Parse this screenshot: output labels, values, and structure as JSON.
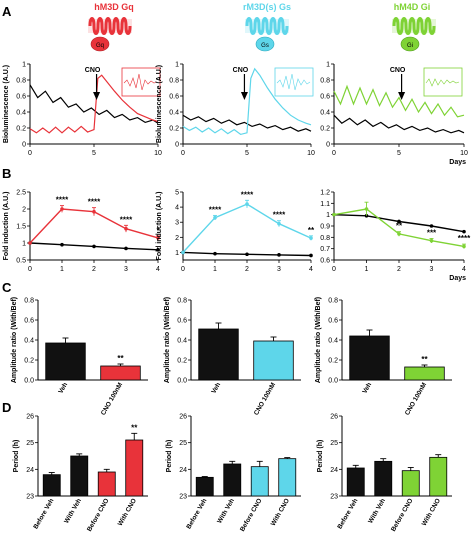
{
  "panel_letters": [
    "A",
    "B",
    "C",
    "D"
  ],
  "receptors": [
    {
      "title": "hM3D Gq",
      "protein": "Gq",
      "color": "#e8333a"
    },
    {
      "title": "rM3D(s) Gs",
      "protein": "Gs",
      "color": "#5ed6ea"
    },
    {
      "title": "hM4D Gi",
      "protein": "Gi",
      "color": "#7fd335"
    }
  ],
  "chart_data": [
    {
      "panel": "A",
      "type": "line",
      "id": "A1",
      "ylabel": "Bioluminescence (A.U.)",
      "xlabel": "",
      "annotation": "CNO",
      "annotation_x": 5.2,
      "xlim": [
        0,
        10
      ],
      "ylim": [
        0,
        1
      ],
      "xticks": [
        0,
        5,
        10
      ],
      "yticks": [
        0,
        0.2,
        0.4,
        0.6,
        0.8,
        1.0
      ],
      "series": [
        {
          "color": "#000000",
          "x": [
            0,
            0.6,
            1.2,
            1.8,
            2.4,
            3.0,
            3.6,
            4.2,
            4.8,
            5.4,
            6.0,
            6.6,
            7.2,
            7.8,
            8.4,
            9.0,
            9.6,
            10
          ],
          "y": [
            0.74,
            0.58,
            0.66,
            0.52,
            0.58,
            0.46,
            0.5,
            0.4,
            0.45,
            0.37,
            0.42,
            0.33,
            0.37,
            0.3,
            0.33,
            0.27,
            0.3,
            0.26
          ]
        },
        {
          "color": "#e8333a",
          "x": [
            0,
            0.5,
            1.0,
            1.5,
            2.0,
            2.5,
            3.0,
            3.5,
            4.0,
            4.5,
            5.0,
            5.3,
            5.6,
            6.0,
            6.6,
            7.2,
            7.8,
            8.4,
            9.0,
            9.6,
            10
          ],
          "y": [
            0.19,
            0.14,
            0.2,
            0.14,
            0.21,
            0.14,
            0.21,
            0.15,
            0.22,
            0.15,
            0.18,
            0.82,
            0.86,
            0.78,
            0.66,
            0.55,
            0.46,
            0.38,
            0.34,
            0.3,
            0.28
          ]
        }
      ]
    },
    {
      "panel": "A",
      "type": "line",
      "id": "A2",
      "ylabel": "Bioluminescence (A.U.)",
      "xlabel": "",
      "annotation": "CNO",
      "annotation_x": 4.8,
      "xlim": [
        0,
        10
      ],
      "ylim": [
        0,
        1
      ],
      "xticks": [
        0,
        5,
        10
      ],
      "yticks": [
        0,
        0.2,
        0.4,
        0.6,
        0.8,
        1.0
      ],
      "series": [
        {
          "color": "#000000",
          "x": [
            0,
            0.6,
            1.2,
            1.8,
            2.4,
            3.0,
            3.6,
            4.2,
            4.8,
            5.4,
            6.0,
            6.6,
            7.2,
            7.8,
            8.4,
            9.0,
            9.6,
            10
          ],
          "y": [
            0.36,
            0.3,
            0.34,
            0.28,
            0.32,
            0.26,
            0.3,
            0.24,
            0.27,
            0.22,
            0.25,
            0.2,
            0.23,
            0.18,
            0.21,
            0.16,
            0.19,
            0.16
          ]
        },
        {
          "color": "#5ed6ea",
          "x": [
            0,
            0.5,
            1.0,
            1.5,
            2.0,
            2.5,
            3.0,
            3.5,
            4.0,
            4.5,
            5.0,
            5.3,
            5.6,
            6.0,
            6.6,
            7.2,
            7.8,
            8.4,
            9.0,
            9.6,
            10
          ],
          "y": [
            0.22,
            0.17,
            0.21,
            0.15,
            0.2,
            0.14,
            0.19,
            0.13,
            0.18,
            0.12,
            0.14,
            0.82,
            0.94,
            0.86,
            0.7,
            0.56,
            0.45,
            0.36,
            0.3,
            0.26,
            0.24
          ]
        }
      ]
    },
    {
      "panel": "A",
      "type": "line",
      "id": "A3",
      "ylabel": "",
      "xlabel": "Days",
      "annotation": "CNO",
      "annotation_x": 5.2,
      "xlim": [
        0,
        10
      ],
      "ylim": [
        0,
        1
      ],
      "xticks": [
        0,
        5,
        10
      ],
      "yticks": [
        0,
        0.2,
        0.4,
        0.6,
        0.8,
        1.0
      ],
      "series": [
        {
          "color": "#000000",
          "x": [
            0,
            0.6,
            1.2,
            1.8,
            2.4,
            3.0,
            3.6,
            4.2,
            4.8,
            5.4,
            6.0,
            6.6,
            7.2,
            7.8,
            8.4,
            9.0,
            9.6,
            10
          ],
          "y": [
            0.36,
            0.26,
            0.32,
            0.24,
            0.3,
            0.22,
            0.27,
            0.2,
            0.24,
            0.18,
            0.22,
            0.17,
            0.2,
            0.15,
            0.18,
            0.14,
            0.17,
            0.14
          ]
        },
        {
          "color": "#7fd335",
          "x": [
            0,
            0.5,
            1.0,
            1.5,
            2.0,
            2.5,
            3.0,
            3.5,
            4.0,
            4.5,
            5.0,
            5.5,
            6.0,
            6.5,
            7.0,
            7.5,
            8.0,
            8.5,
            9.0,
            9.5,
            10
          ],
          "y": [
            0.66,
            0.5,
            0.72,
            0.5,
            0.7,
            0.5,
            0.68,
            0.48,
            0.64,
            0.46,
            0.58,
            0.42,
            0.56,
            0.4,
            0.52,
            0.38,
            0.5,
            0.36,
            0.46,
            0.34,
            0.36
          ]
        }
      ]
    },
    {
      "panel": "B",
      "type": "line",
      "id": "B1",
      "ylabel": "Fold induction (A.U.)",
      "xlabel": "",
      "xlim": [
        0,
        4
      ],
      "ylim": [
        0.5,
        2.5
      ],
      "xticks": [
        0,
        1,
        2,
        3,
        4
      ],
      "yticks": [
        0.5,
        1.0,
        1.5,
        2.0,
        2.5
      ],
      "series": [
        {
          "color": "#000000",
          "x": [
            0,
            1,
            2,
            3,
            4
          ],
          "y": [
            1.0,
            0.95,
            0.9,
            0.84,
            0.8
          ],
          "err": [
            0,
            0,
            0,
            0,
            0
          ]
        },
        {
          "color": "#e8333a",
          "x": [
            0,
            1,
            2,
            3,
            4
          ],
          "y": [
            1.0,
            2.0,
            1.92,
            1.42,
            1.15
          ],
          "err": [
            0,
            0.1,
            0.12,
            0.1,
            0.06
          ]
        }
      ],
      "significance": [
        {
          "x": 1,
          "label": "****"
        },
        {
          "x": 2,
          "label": "****"
        },
        {
          "x": 3,
          "label": "****"
        },
        {
          "x": 4,
          "label": "*"
        }
      ]
    },
    {
      "panel": "B",
      "type": "line",
      "id": "B2",
      "ylabel": "Fold induction (A.U.)",
      "xlabel": "",
      "xlim": [
        0,
        4
      ],
      "ylim": [
        0.5,
        5.0
      ],
      "xticks": [
        0,
        1,
        2,
        3,
        4
      ],
      "yticks": [
        1,
        2,
        3,
        4,
        5
      ],
      "series": [
        {
          "color": "#000000",
          "x": [
            0,
            1,
            2,
            3,
            4
          ],
          "y": [
            1.0,
            0.92,
            0.88,
            0.84,
            0.8
          ],
          "err": [
            0,
            0,
            0,
            0,
            0
          ]
        },
        {
          "color": "#5ed6ea",
          "x": [
            0,
            1,
            2,
            3,
            4
          ],
          "y": [
            1.0,
            3.3,
            4.2,
            2.9,
            1.95
          ],
          "err": [
            0,
            0.15,
            0.25,
            0.2,
            0.15
          ]
        }
      ],
      "significance": [
        {
          "x": 1,
          "label": "****"
        },
        {
          "x": 2,
          "label": "****"
        },
        {
          "x": 3,
          "label": "****"
        },
        {
          "x": 4,
          "label": "**"
        }
      ]
    },
    {
      "panel": "B",
      "type": "line",
      "id": "B3",
      "ylabel": "",
      "xlabel": "Days",
      "xlim": [
        0,
        4
      ],
      "ylim": [
        0.6,
        1.2
      ],
      "xticks": [
        0,
        1,
        2,
        3,
        4
      ],
      "yticks": [
        0.6,
        0.7,
        0.8,
        0.9,
        1.0,
        1.1,
        1.2
      ],
      "series": [
        {
          "color": "#000000",
          "x": [
            0,
            1,
            2,
            3,
            4
          ],
          "y": [
            1.0,
            0.99,
            0.94,
            0.9,
            0.85
          ],
          "err": [
            0,
            0,
            0,
            0,
            0
          ]
        },
        {
          "color": "#7fd335",
          "x": [
            0,
            1,
            2,
            3,
            4
          ],
          "y": [
            1.0,
            1.05,
            0.83,
            0.77,
            0.72
          ],
          "err": [
            0,
            0.06,
            0.02,
            0.02,
            0.02
          ]
        }
      ],
      "significance": [
        {
          "x": 2,
          "label": "**"
        },
        {
          "x": 3,
          "label": "***"
        },
        {
          "x": 4,
          "label": "****"
        }
      ]
    },
    {
      "panel": "C",
      "type": "bar",
      "id": "C1",
      "ylabel": "Amplitude ratio (With/Bef)",
      "ylim": [
        0,
        0.8
      ],
      "yticks": [
        0.0,
        0.2,
        0.4,
        0.6,
        0.8
      ],
      "categories": [
        "Veh",
        "CNO 100nM"
      ],
      "values": [
        0.37,
        0.14
      ],
      "errors": [
        0.05,
        0.02
      ],
      "colors": [
        "#111111",
        "#e8333a"
      ],
      "significance": [
        {
          "bar": 1,
          "label": "**"
        }
      ]
    },
    {
      "panel": "C",
      "type": "bar",
      "id": "C2",
      "ylabel": "Amplitude ratio (With/Bef)",
      "ylim": [
        0,
        0.8
      ],
      "yticks": [
        0.0,
        0.2,
        0.4,
        0.6,
        0.8
      ],
      "categories": [
        "Veh",
        "CNO 100nM"
      ],
      "values": [
        0.51,
        0.39
      ],
      "errors": [
        0.06,
        0.04
      ],
      "colors": [
        "#111111",
        "#5ed6ea"
      ],
      "significance": []
    },
    {
      "panel": "C",
      "type": "bar",
      "id": "C3",
      "ylabel": "Amplitude ratio (With/Bef)",
      "ylim": [
        0,
        0.8
      ],
      "yticks": [
        0.0,
        0.2,
        0.4,
        0.6,
        0.8
      ],
      "categories": [
        "Veh",
        "CNO 100nM"
      ],
      "values": [
        0.44,
        0.13
      ],
      "errors": [
        0.06,
        0.02
      ],
      "colors": [
        "#111111",
        "#7fd335"
      ],
      "significance": [
        {
          "bar": 1,
          "label": "**"
        }
      ]
    },
    {
      "panel": "D",
      "type": "bar",
      "id": "D1",
      "ylabel": "Period (h)",
      "ylim": [
        23,
        26
      ],
      "yticks": [
        23,
        24,
        25,
        26
      ],
      "categories": [
        "Before Veh",
        "With Veh",
        "Before CNO",
        "With CNO"
      ],
      "values": [
        23.8,
        24.5,
        23.9,
        25.1
      ],
      "errors": [
        0.08,
        0.08,
        0.1,
        0.25
      ],
      "colors": [
        "#111111",
        "#111111",
        "#e8333a",
        "#e8333a"
      ],
      "significance": [
        {
          "bar": 3,
          "label": "**"
        }
      ]
    },
    {
      "panel": "D",
      "type": "bar",
      "id": "D2",
      "ylabel": "Period (h)",
      "ylim": [
        23,
        26
      ],
      "yticks": [
        23,
        24,
        25,
        26
      ],
      "categories": [
        "Before Veh",
        "With Veh",
        "Before CNO",
        "With CNO"
      ],
      "values": [
        23.7,
        24.2,
        24.1,
        24.4
      ],
      "errors": [
        0.03,
        0.1,
        0.2,
        0.04
      ],
      "colors": [
        "#111111",
        "#111111",
        "#5ed6ea",
        "#5ed6ea"
      ],
      "significance": []
    },
    {
      "panel": "D",
      "type": "bar",
      "id": "D3",
      "ylabel": "Period (h)",
      "ylim": [
        23,
        26
      ],
      "yticks": [
        23,
        24,
        25,
        26
      ],
      "categories": [
        "Before Veh",
        "With Veh",
        "Before CNO",
        "With CNO"
      ],
      "values": [
        24.05,
        24.3,
        23.95,
        24.45
      ],
      "errors": [
        0.1,
        0.1,
        0.12,
        0.1
      ],
      "colors": [
        "#111111",
        "#111111",
        "#7fd335",
        "#7fd335"
      ],
      "significance": []
    }
  ]
}
